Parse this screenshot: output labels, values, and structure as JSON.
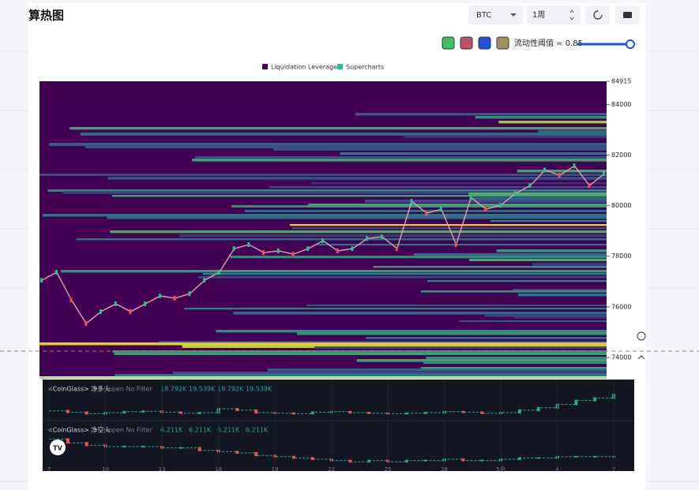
{
  "header": {
    "title": "算热图"
  },
  "controls": {
    "symbol": "BTC",
    "period": "1周",
    "threshold": "流动性阈值 = 0.85"
  },
  "chart_data": [
    {
      "type": "heatmap",
      "heatmap": {
        "name": "Liquidation Leverage",
        "color": "#440154"
      },
      "series": [
        {
          "name": "Supercharts",
          "color": "#22c38e",
          "values": [
            77050,
            77370,
            76270,
            75340,
            75810,
            76120,
            75810,
            76120,
            76430,
            76340,
            76520,
            77050,
            77370,
            78300,
            78460,
            78140,
            78210,
            78080,
            78300,
            78610,
            78210,
            78300,
            78700,
            78770,
            78300,
            80170,
            79700,
            79860,
            78460,
            80320,
            79860,
            80010,
            80480,
            80790,
            81410,
            81200,
            81570,
            80790,
            81260
          ]
        }
      ],
      "ylim": [
        73250,
        84915
      ],
      "yticks": [
        74000,
        76000,
        78000,
        80000,
        82000,
        84000,
        84915
      ]
    },
    {
      "type": "step",
      "x": [
        7,
        8,
        9,
        10,
        11,
        12,
        13,
        14,
        15,
        16,
        17,
        18,
        19,
        20,
        21,
        22,
        23,
        24,
        25,
        26,
        27,
        28,
        29,
        30,
        31,
        32,
        33,
        34,
        35,
        36,
        37
      ],
      "xlim": [
        6.66,
        38.09
      ],
      "xticks": [
        7,
        10,
        13,
        16,
        19,
        22,
        25,
        28,
        {
          "value": 31,
          "label": "5月"
        },
        {
          "value": 34,
          "label": "4"
        },
        {
          "value": 37,
          "label": "7"
        }
      ],
      "series": [
        {
          "name": "<CoinGlass> 净多头",
          "subtitle": "open No Filter",
          "readouts": [
            "18.792K",
            "19.539K",
            "18.792K",
            "19.539K"
          ],
          "color": "#26a69a",
          "ylim": [
            15,
            20
          ],
          "values": [
            16.2,
            15.9,
            15.6,
            15.8,
            16.0,
            16.1,
            15.9,
            15.7,
            15.8,
            16.6,
            16.3,
            15.8,
            15.7,
            15.6,
            15.9,
            16.0,
            15.8,
            15.7,
            15.6,
            15.7,
            15.8,
            16.0,
            15.9,
            15.7,
            15.8,
            16.3,
            16.8,
            17.5,
            18.3,
            18.8,
            19.5
          ]
        },
        {
          "name": "<CoinGlass> 净空头",
          "subtitle": "open No Filter",
          "readouts": [
            "6.211K",
            "6.211K",
            "6.211K",
            "6.211K"
          ],
          "color": "#26a69a",
          "ylim": [
            5.5,
            8
          ],
          "values": [
            7.6,
            7.3,
            7.1,
            7.0,
            7.0,
            7.0,
            6.9,
            6.9,
            6.7,
            6.6,
            6.5,
            6.3,
            6.2,
            6.1,
            6.0,
            5.9,
            5.8,
            5.9,
            5.8,
            5.9,
            5.9,
            6.0,
            5.9,
            5.9,
            6.0,
            6.1,
            6.1,
            6.2,
            6.2,
            6.2,
            6.2
          ]
        }
      ]
    }
  ]
}
